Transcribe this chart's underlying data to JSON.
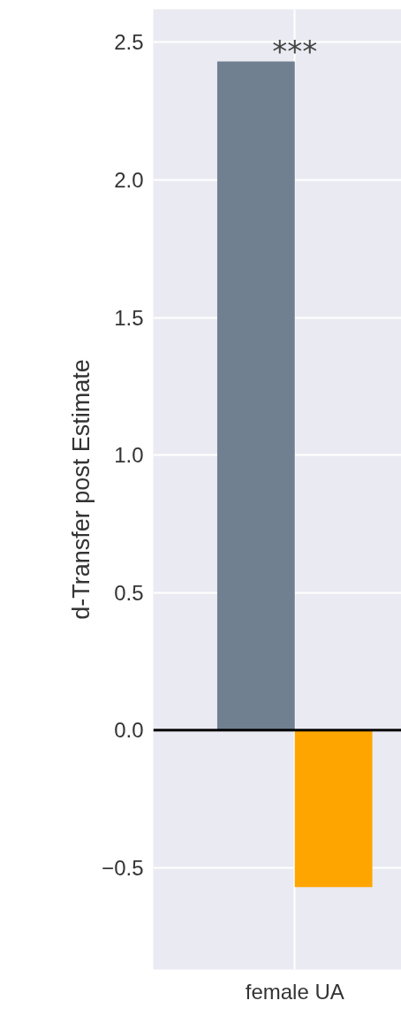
{
  "chart_data": {
    "type": "bar",
    "categories": [
      "female UA"
    ],
    "ylabel": "d-Transfer post Estimate",
    "series": [
      {
        "color": "#708090",
        "values": [
          2.43
        ]
      },
      {
        "color": "#ffa500",
        "values": [
          -0.57
        ]
      }
    ],
    "ylim": [
      -0.87,
      2.62
    ],
    "yticks": [
      {
        "value": -0.5,
        "label": "−0.5"
      },
      {
        "value": 0,
        "label": "0.0"
      },
      {
        "value": 0.5,
        "label": "0.5"
      },
      {
        "value": 1,
        "label": "1.0"
      },
      {
        "value": 1.5,
        "label": "1.5"
      },
      {
        "value": 2,
        "label": "2.0"
      },
      {
        "value": 2.5,
        "label": "2.5"
      }
    ],
    "grid": true,
    "ref_lines": [
      {
        "axis": "y",
        "value": 0,
        "color": "#000000"
      }
    ],
    "annotations": [
      {
        "text": "***",
        "x": "female UA",
        "y": 2.43
      }
    ]
  }
}
